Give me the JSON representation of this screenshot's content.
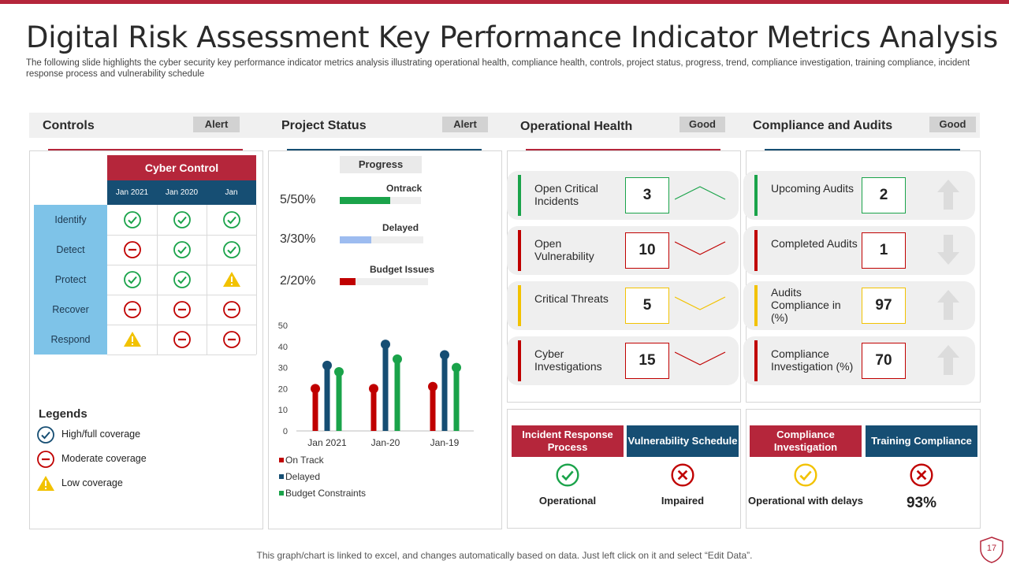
{
  "title": "Digital Risk Assessment Key Performance Indicator Metrics Analysis",
  "subtitle": "The following slide highlights the cyber security key  performance indicator metrics analysis illustrating operational health, compliance health, controls, project status, progress, trend, compliance investigation, training compliance, incident response process and vulnerability schedule",
  "sections": [
    {
      "title": "Controls",
      "badge": "Alert"
    },
    {
      "title": "Project Status",
      "badge": "Alert"
    },
    {
      "title": "Operational Health",
      "badge": "Good"
    },
    {
      "title": "Compliance and Audits",
      "badge": "Good"
    }
  ],
  "controls": {
    "header": "Cyber Control",
    "columns": [
      "Jan 2021",
      "Jan 2020",
      "Jan"
    ],
    "rows": [
      {
        "label": "Identify",
        "status": [
          "check",
          "check",
          "check"
        ]
      },
      {
        "label": "Detect",
        "status": [
          "minus",
          "check",
          "check"
        ]
      },
      {
        "label": "Protect",
        "status": [
          "check",
          "check",
          "warn"
        ]
      },
      {
        "label": "Recover",
        "status": [
          "minus",
          "minus",
          "minus"
        ]
      },
      {
        "label": "Respond",
        "status": [
          "warn",
          "minus",
          "minus"
        ]
      }
    ],
    "legend_title": "Legends",
    "legend": [
      {
        "icon": "check",
        "label": "High/full coverage"
      },
      {
        "icon": "minus",
        "label": "Moderate  coverage"
      },
      {
        "icon": "warn",
        "label": "Low coverage"
      }
    ]
  },
  "project_status": {
    "progress_title": "Progress",
    "items": [
      {
        "ratio": "5/50%",
        "label": "Ontrack",
        "fill": 0.62,
        "color": "#1aa34a"
      },
      {
        "ratio": "3/30%",
        "label": "Delayed",
        "fill": 0.38,
        "color": "#9dbcf0"
      },
      {
        "ratio": "2/20%",
        "label": "Budget Issues",
        "fill": 0.18,
        "color": "#c00000"
      }
    ]
  },
  "chart_data": {
    "type": "bar",
    "title": "",
    "xlabel": "",
    "ylabel": "",
    "categories": [
      "Jan 2021",
      "Jan-20",
      "Jan-19"
    ],
    "series": [
      {
        "name": "On Track",
        "values": [
          20,
          20,
          21
        ],
        "color": "#c00000"
      },
      {
        "name": "Delayed",
        "values": [
          31,
          41,
          36
        ],
        "color": "#164e73"
      },
      {
        "name": "Budget Constraints",
        "values": [
          28,
          34,
          30
        ],
        "color": "#1aa34a"
      }
    ],
    "ylim": [
      0,
      50
    ],
    "yticks": [
      "0",
      "10",
      "20",
      "30",
      "40",
      "50"
    ],
    "grid": false,
    "legend_position": "bottom-left"
  },
  "operational_health": [
    {
      "label": "Open Critical Incidents",
      "value": "3",
      "color": "#1aa34a",
      "trend": "up"
    },
    {
      "label": "Open Vulnerability",
      "value": "10",
      "color": "#c00000",
      "trend": "down"
    },
    {
      "label": "Critical Threats",
      "value": "5",
      "color": "#f2c200",
      "trend": "down"
    },
    {
      "label": "Cyber Investigations",
      "value": "15",
      "color": "#c00000",
      "trend": "down"
    }
  ],
  "compliance_audits": [
    {
      "label": "Upcoming Audits",
      "value": "2",
      "color": "#1aa34a",
      "arrow": "up"
    },
    {
      "label": "Completed Audits",
      "value": "1",
      "color": "#c00000",
      "arrow": "down"
    },
    {
      "label": "Audits Compliance in (%)",
      "value": "97",
      "color": "#f2c200",
      "arrow": "up"
    },
    {
      "label": "Compliance Investigation (%)",
      "value": "70",
      "color": "#c00000",
      "arrow": "up"
    }
  ],
  "status_boxes": [
    {
      "header": "Incident Response Process",
      "status": "Operational",
      "icon": "check",
      "color": "#1aa34a",
      "head_color": "#b5263b"
    },
    {
      "header": "Vulnerability Schedule",
      "status": "Impaired",
      "icon": "cross",
      "color": "#c00000",
      "head_color": "#164e73"
    },
    {
      "header": "Compliance Investigation",
      "status": "Operational with delays",
      "icon": "check",
      "color": "#f2c200",
      "head_color": "#b5263b"
    },
    {
      "header": "Training Compliance",
      "status": "93%",
      "icon": "cross",
      "color": "#c00000",
      "head_color": "#164e73"
    }
  ],
  "footer": "This graph/chart is linked to excel, and changes automatically based on data. Just left click on it and select “Edit Data”.",
  "page_number": "17"
}
